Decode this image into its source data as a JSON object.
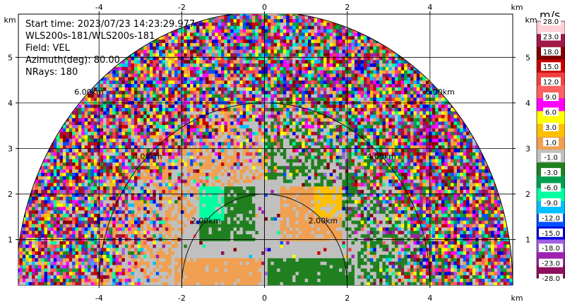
{
  "chart_data": {
    "type": "heatmap",
    "title": "",
    "info": [
      "Start time: 2023/07/23 14:23:29.977",
      "WLS200s-181/WLS200s-181",
      "Field: VEL",
      "Azimuth(deg): 80.00",
      "NRays: 180"
    ],
    "x_unit": "km",
    "y_unit": "km",
    "xlim": [
      -5.95,
      6.0
    ],
    "ylim": [
      0,
      5.95
    ],
    "x_ticks": [
      -4,
      -2,
      0,
      2,
      4
    ],
    "y_ticks": [
      1,
      2,
      3,
      4,
      5
    ],
    "grid": true,
    "range_rings": [
      {
        "range_km": 2,
        "label": "2.00km"
      },
      {
        "range_km": 4,
        "label": "4.00km"
      },
      {
        "range_km": 6,
        "label": "6.00km"
      }
    ],
    "max_range_km": 6,
    "colorbar": {
      "title": "m/s",
      "labels": [
        "28.0",
        "23.0",
        "18.0",
        "15.0",
        "12.0",
        "9.0",
        "6.0",
        "3.0",
        "1.0",
        "-1.0",
        "-3.0",
        "-6.0",
        "-9.0",
        "-12.0",
        "-15.0",
        "-18.0",
        "-23.0",
        "-28.0"
      ],
      "colors": [
        "#ffd0d8",
        "#a01848",
        "#800000",
        "#c80000",
        "#f04040",
        "#ff6060",
        "#ff00ff",
        "#ffff00",
        "#ffc000",
        "#f0a050",
        "#c0c0c0",
        "#208020",
        "#00a050",
        "#00ffa0",
        "#00c0ff",
        "#0050ff",
        "#0000e0",
        "#a060e0",
        "#a020b0",
        "#901060"
      ]
    }
  }
}
